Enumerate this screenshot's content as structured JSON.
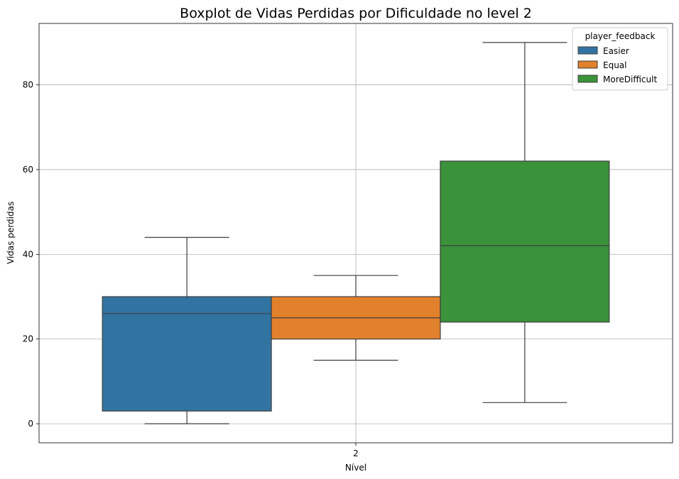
{
  "chart_data": {
    "type": "boxplot",
    "title": "Boxplot de Vidas Perdidas por Dificuldade no level 2",
    "xlabel": "Nível",
    "ylabel": "Vidas perdidas",
    "categories": [
      "2"
    ],
    "ylim": [
      -4.5,
      94.5
    ],
    "yticks": [
      0,
      20,
      40,
      60,
      80
    ],
    "grid": true,
    "legend": {
      "title": "player_feedback",
      "placement": "top-right"
    },
    "series": [
      {
        "name": "Easier",
        "color": "#3274a1",
        "whisker_low": 0,
        "q1": 3,
        "median": 26,
        "q3": 30,
        "whisker_high": 44
      },
      {
        "name": "Equal",
        "color": "#e1812c",
        "whisker_low": 15,
        "q1": 20,
        "median": 25,
        "q3": 30,
        "whisker_high": 35
      },
      {
        "name": "MoreDifficult",
        "color": "#3a923a",
        "whisker_low": 5,
        "q1": 24,
        "median": 42,
        "q3": 62,
        "whisker_high": 90
      }
    ]
  }
}
